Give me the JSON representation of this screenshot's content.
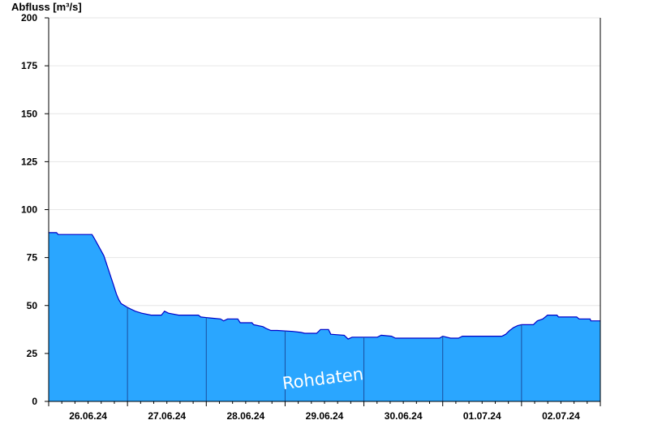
{
  "chart_data": {
    "type": "area",
    "title": "",
    "ylabel": "Abfluss [m³/s]",
    "xlabel": "",
    "ylim": [
      0,
      200
    ],
    "yticks": [
      0,
      25,
      50,
      75,
      100,
      125,
      150,
      175,
      200
    ],
    "x_day_range": [
      0,
      7
    ],
    "day_labels": [
      "26.06.24",
      "27.06.24",
      "28.06.24",
      "29.06.24",
      "30.06.24",
      "01.07.24",
      "02.07.24"
    ],
    "day_tick_positions": [
      0.5,
      1.5,
      2.5,
      3.5,
      4.5,
      5.5,
      6.5
    ],
    "day_boundaries": [
      1,
      2,
      3,
      4,
      5,
      6
    ],
    "grid": true,
    "fill_color": "#2aa6ff",
    "line_color": "#0000c8",
    "watermark": "Rohdaten",
    "series": [
      {
        "points": [
          [
            0.0,
            88
          ],
          [
            0.1,
            88
          ],
          [
            0.12,
            87
          ],
          [
            0.55,
            87
          ],
          [
            0.58,
            85
          ],
          [
            0.62,
            82
          ],
          [
            0.66,
            79
          ],
          [
            0.7,
            76
          ],
          [
            0.74,
            71
          ],
          [
            0.78,
            66
          ],
          [
            0.82,
            61
          ],
          [
            0.86,
            56
          ],
          [
            0.89,
            53
          ],
          [
            0.92,
            51
          ],
          [
            0.96,
            50
          ],
          [
            1.0,
            49
          ],
          [
            1.05,
            48
          ],
          [
            1.1,
            47
          ],
          [
            1.18,
            46
          ],
          [
            1.3,
            45
          ],
          [
            1.43,
            45
          ],
          [
            1.47,
            47
          ],
          [
            1.52,
            46
          ],
          [
            1.65,
            45
          ],
          [
            1.9,
            45
          ],
          [
            1.93,
            44
          ],
          [
            2.05,
            43.5
          ],
          [
            2.18,
            43
          ],
          [
            2.22,
            42
          ],
          [
            2.27,
            43
          ],
          [
            2.4,
            43
          ],
          [
            2.43,
            41
          ],
          [
            2.58,
            41
          ],
          [
            2.6,
            40
          ],
          [
            2.72,
            39
          ],
          [
            2.76,
            38
          ],
          [
            2.82,
            37
          ],
          [
            2.9,
            37
          ],
          [
            3.1,
            36.5
          ],
          [
            3.2,
            36
          ],
          [
            3.25,
            35.5
          ],
          [
            3.4,
            35.5
          ],
          [
            3.45,
            37.5
          ],
          [
            3.55,
            37.5
          ],
          [
            3.58,
            35
          ],
          [
            3.75,
            34.5
          ],
          [
            3.8,
            32.5
          ],
          [
            3.85,
            33.5
          ],
          [
            4.17,
            33.5
          ],
          [
            4.22,
            34.5
          ],
          [
            4.35,
            34
          ],
          [
            4.4,
            33
          ],
          [
            4.96,
            33
          ],
          [
            5.0,
            34
          ],
          [
            5.1,
            33
          ],
          [
            5.2,
            33
          ],
          [
            5.25,
            34
          ],
          [
            5.75,
            34
          ],
          [
            5.8,
            35
          ],
          [
            5.85,
            37
          ],
          [
            5.9,
            38.5
          ],
          [
            5.95,
            39.5
          ],
          [
            6.0,
            40
          ],
          [
            6.15,
            40
          ],
          [
            6.2,
            42
          ],
          [
            6.27,
            43
          ],
          [
            6.33,
            45
          ],
          [
            6.45,
            45
          ],
          [
            6.47,
            44
          ],
          [
            6.7,
            44
          ],
          [
            6.73,
            43
          ],
          [
            6.87,
            43
          ],
          [
            6.88,
            42
          ],
          [
            7.0,
            42
          ]
        ]
      }
    ]
  }
}
